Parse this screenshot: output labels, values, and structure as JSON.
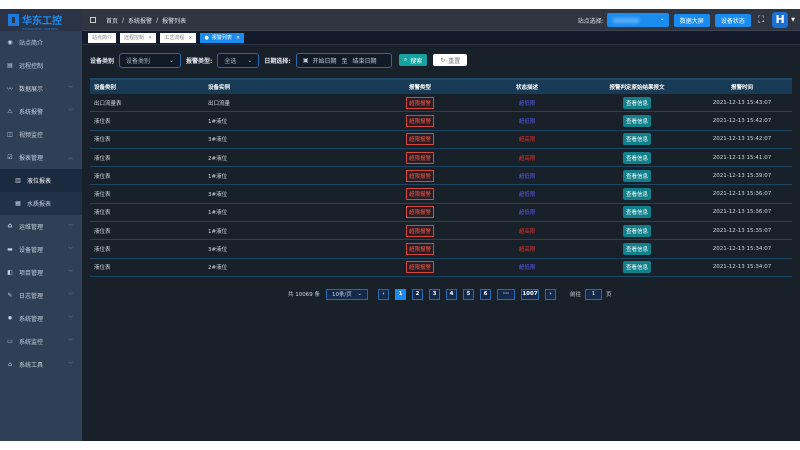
{
  "logo": {
    "text": "华东工控",
    "sub": "HD INDUSTRY CONTROL"
  },
  "breadcrumb": [
    "首页",
    "系统报警",
    "报警列表"
  ],
  "header": {
    "site_label": "站点选择:",
    "data_screen": "数据大屏",
    "device_status": "设备状态",
    "avatar_letter": "H"
  },
  "sidebar": {
    "items": [
      {
        "label": "站点简介",
        "icon": "dashboard-icon",
        "chevron": false
      },
      {
        "label": "远程控制",
        "icon": "remote-icon",
        "chevron": false
      },
      {
        "label": "数据展示",
        "icon": "chart-icon",
        "chevron": true
      },
      {
        "label": "系统报警",
        "icon": "alarm-icon",
        "chevron": true
      },
      {
        "label": "视频监控",
        "icon": "camera-icon",
        "chevron": false
      },
      {
        "label": "报表管理",
        "icon": "report-icon",
        "chevron": true,
        "expanded": true
      },
      {
        "label": "液位报表",
        "icon": "bar-chart-icon",
        "sub": true,
        "active": true
      },
      {
        "label": "水质报表",
        "icon": "table-icon",
        "sub": true
      },
      {
        "label": "运维管理",
        "icon": "maintenance-icon",
        "chevron": true
      },
      {
        "label": "设备管理",
        "icon": "device-icon",
        "chevron": true
      },
      {
        "label": "项目管理",
        "icon": "project-icon",
        "chevron": true
      },
      {
        "label": "日志管理",
        "icon": "log-icon",
        "chevron": true
      },
      {
        "label": "系统管理",
        "icon": "gear-icon",
        "chevron": true
      },
      {
        "label": "系统监控",
        "icon": "monitor-icon",
        "chevron": true
      },
      {
        "label": "系统工具",
        "icon": "tools-icon",
        "chevron": true
      }
    ]
  },
  "tabs": [
    {
      "label": "站点简介"
    },
    {
      "label": "远程控制"
    },
    {
      "label": "工艺流程"
    },
    {
      "label": "报警列表",
      "active": true
    }
  ],
  "filters": {
    "device_type_label": "设备类别",
    "device_type_placeholder": "设备类别",
    "alarm_type_label": "报警类型:",
    "alarm_type_value": "全选",
    "date_label": "日期选择:",
    "start_placeholder": "开始日期",
    "to": "至",
    "end_placeholder": "结束日期",
    "search": "搜索",
    "reset": "重置"
  },
  "table": {
    "columns": [
      "设备类别",
      "设备实例",
      "报警类型",
      "状态描述",
      "报警判定原始结果报文",
      "报警时间"
    ],
    "rows": [
      [
        "出口流量表",
        "出口流量",
        "超限报警",
        "超低限",
        "查看信息",
        "2021-12-13 15:43:07"
      ],
      [
        "液位表",
        "1#液位",
        "超限报警",
        "超低限",
        "查看信息",
        "2021-12-13 15:42:07"
      ],
      [
        "液位表",
        "3#液位",
        "超限报警",
        "超高限",
        "查看信息",
        "2021-12-13 15:42:07"
      ],
      [
        "液位表",
        "2#液位",
        "超限报警",
        "超高限",
        "查看信息",
        "2021-12-13 15:41:07"
      ],
      [
        "液位表",
        "1#液位",
        "超限报警",
        "超低限",
        "查看信息",
        "2021-12-13 15:39:07"
      ],
      [
        "液位表",
        "3#液位",
        "超限报警",
        "超低限",
        "查看信息",
        "2021-12-13 15:36:07"
      ],
      [
        "液位表",
        "1#液位",
        "超限报警",
        "超低限",
        "查看信息",
        "2021-12-13 15:36:07"
      ],
      [
        "液位表",
        "1#液位",
        "超限报警",
        "超高限",
        "查看信息",
        "2021-12-13 15:35:07"
      ],
      [
        "液位表",
        "3#液位",
        "超限报警",
        "超高限",
        "查看信息",
        "2021-12-13 15:34:07"
      ],
      [
        "液位表",
        "2#液位",
        "超限报警",
        "超低限",
        "查看信息",
        "2021-12-13 15:34:07"
      ]
    ]
  },
  "pagination": {
    "total": "共 10069 条",
    "page_size": "10条/页",
    "pages": [
      "1",
      "2",
      "3",
      "4",
      "5",
      "6",
      "···",
      "1007"
    ],
    "current": "1",
    "goto_label": "前往",
    "goto_value": "1",
    "page_unit": "页"
  },
  "colors": {
    "accent": "#1a8cf0",
    "low": "#5a5ae8",
    "high": "#e0332c",
    "info": "#12808a"
  }
}
